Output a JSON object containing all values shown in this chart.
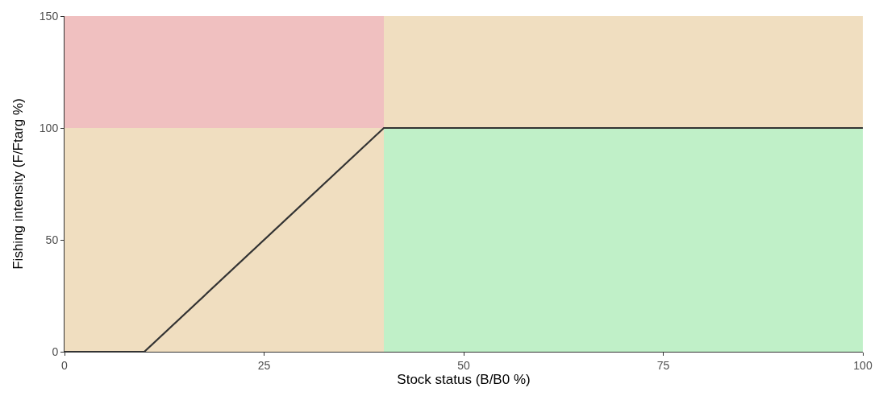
{
  "chart_data": {
    "type": "line",
    "xlabel": "Stock status (B/B0 %)",
    "ylabel": "Fishing intensity (F/Ftarg %)",
    "xlim": [
      0,
      100
    ],
    "xticks": [
      0,
      25,
      50,
      75,
      100
    ],
    "ylim": [
      0,
      150
    ],
    "yticks": [
      0,
      50,
      100,
      150
    ],
    "series": [
      {
        "type": "area",
        "color": "#f0dec0",
        "x": [
          40,
          100
        ],
        "values": [
          150,
          150
        ]
      },
      {
        "type": "area",
        "color": "#f0c0c0",
        "x": [
          0,
          40
        ],
        "values": [
          150,
          150
        ]
      },
      {
        "type": "area",
        "color": "#f0dec0",
        "x": [
          0,
          40
        ],
        "values": [
          100,
          100
        ]
      },
      {
        "type": "area",
        "color": "#c0f0c8",
        "x": [
          40,
          100
        ],
        "values": [
          100,
          100
        ]
      },
      {
        "color": "#333333",
        "x": [
          0,
          10,
          40,
          100
        ],
        "values": [
          0,
          0,
          100,
          100
        ]
      }
    ]
  }
}
